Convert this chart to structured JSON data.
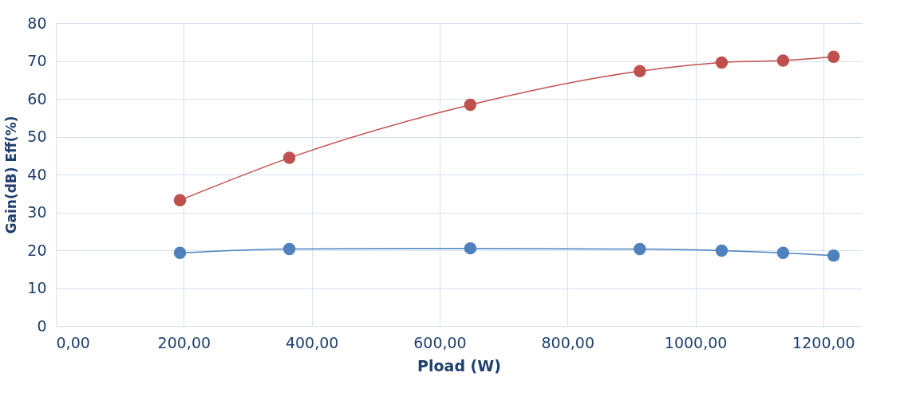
{
  "chart_data": {
    "type": "line",
    "xlabel": "Pload (W)",
    "ylabel": "Gain(dB) Eff(%)",
    "x": [
      194,
      365,
      648,
      913,
      1041,
      1137,
      1216
    ],
    "series": [
      {
        "color": "#c0504d",
        "values": [
          33.2,
          44.4,
          58.4,
          67.3,
          69.6,
          70.1,
          71.1
        ]
      },
      {
        "color": "#4f81bd",
        "values": [
          19.3,
          20.3,
          20.5,
          20.3,
          19.9,
          19.3,
          18.6
        ]
      }
    ],
    "xlim": [
      0,
      1260
    ],
    "xticks": [
      {
        "value": 0,
        "label": "0,00"
      },
      {
        "value": 200,
        "label": "200,00"
      },
      {
        "value": 400,
        "label": "400,00"
      },
      {
        "value": 600,
        "label": "600,00"
      },
      {
        "value": 800,
        "label": "800,00"
      },
      {
        "value": 1000,
        "label": "1000,00"
      },
      {
        "value": 1200,
        "label": "1200,00"
      }
    ],
    "ylim": [
      0,
      80
    ],
    "yticks": [
      0,
      10,
      20,
      30,
      40,
      50,
      60,
      70,
      80
    ],
    "grid": true,
    "marker": "circle",
    "line_style": "solid"
  }
}
